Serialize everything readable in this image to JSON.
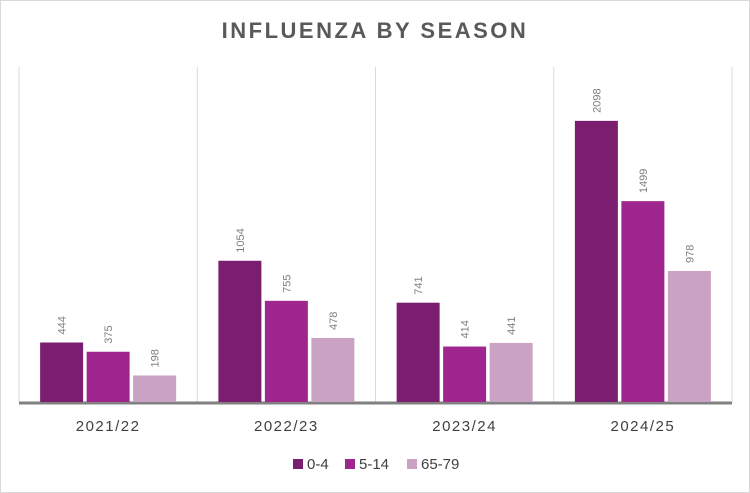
{
  "chart_data": {
    "type": "bar",
    "title": "INFLUENZA BY SEASON",
    "categories": [
      "2021/22",
      "2022/23",
      "2023/24",
      "2024/25"
    ],
    "series": [
      {
        "name": "0-4",
        "color": "#7b1e70",
        "values": [
          444,
          1054,
          741,
          2098
        ]
      },
      {
        "name": "5-14",
        "color": "#a0268f",
        "values": [
          375,
          755,
          414,
          1499
        ]
      },
      {
        "name": "65-79",
        "color": "#c9a2c4",
        "values": [
          198,
          478,
          441,
          978
        ]
      }
    ],
    "xlabel": "",
    "ylabel": "",
    "ylim": [
      0,
      2500
    ],
    "grid": "vertical category separators",
    "legend": "bottom",
    "data_labels": "rotated above bars"
  }
}
